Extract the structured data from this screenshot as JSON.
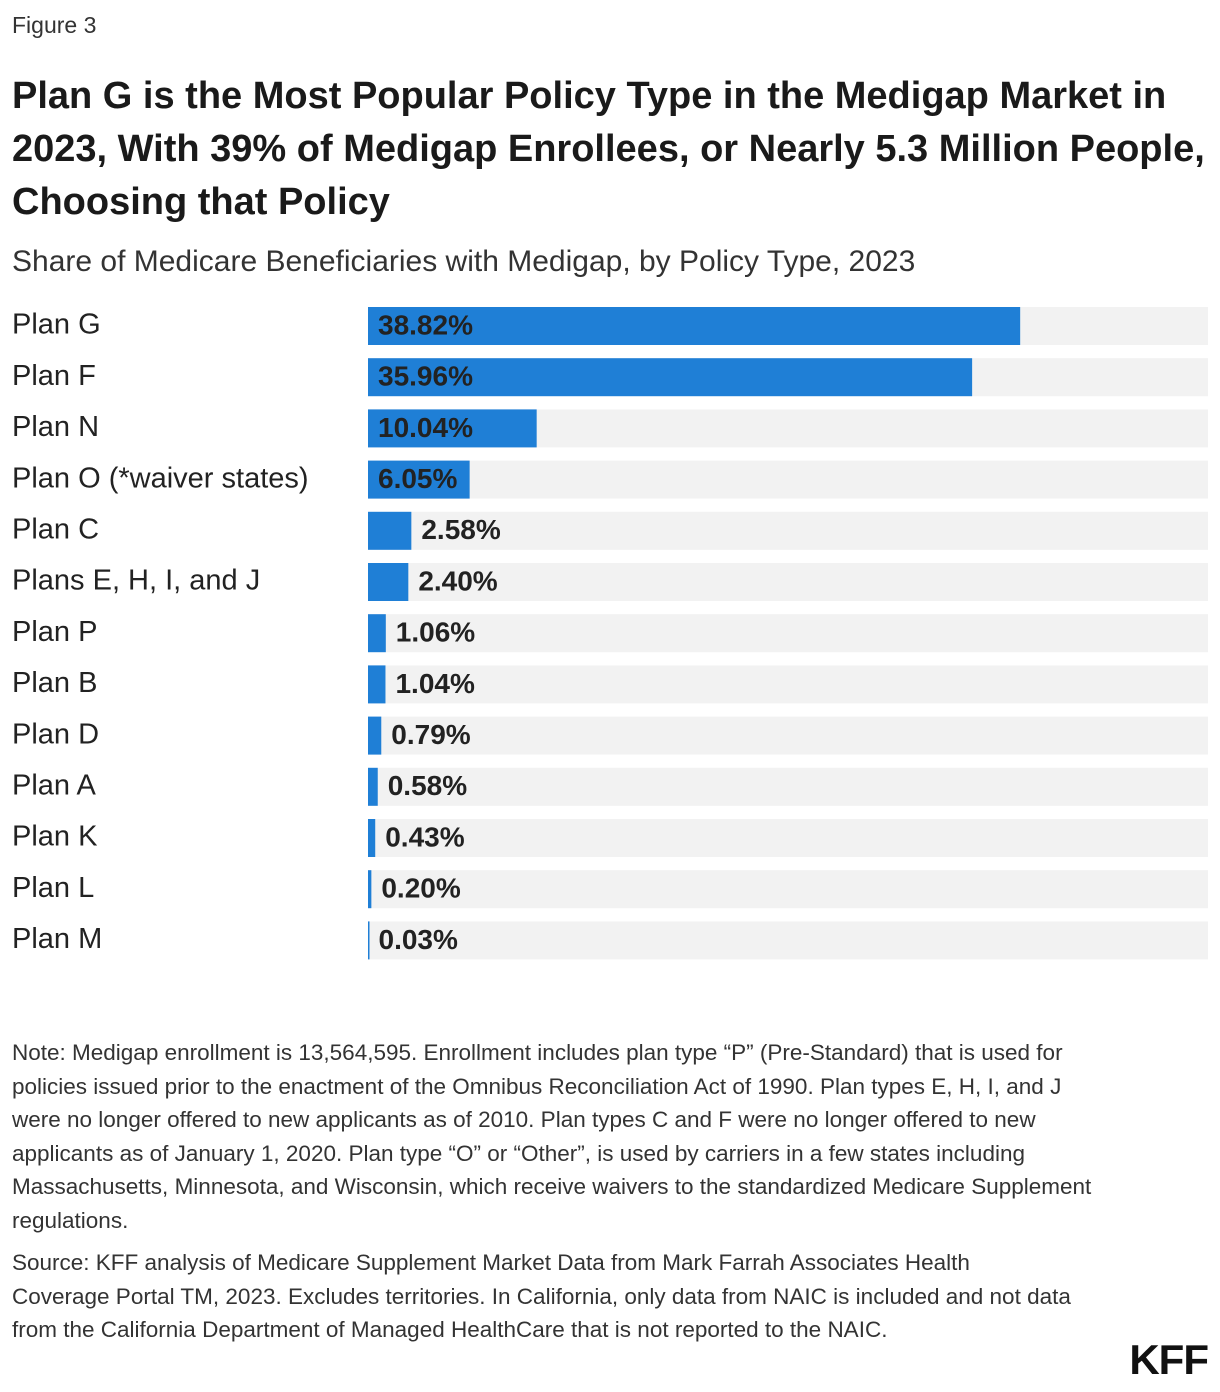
{
  "figure_label": "Figure 3",
  "chart_data": {
    "type": "bar",
    "title": "Plan G is the Most Popular Policy Type in the Medigap Market in 2023, With 39% of Medigap Enrollees, or Nearly 5.3 Million People, Choosing that Policy",
    "subtitle": "Share of Medicare Beneficiaries with Medigap, by Policy Type, 2023",
    "categories": [
      "Plan G",
      "Plan F",
      "Plan N",
      "Plan O (*waiver states)",
      "Plan C",
      "Plans E, H, I, and J",
      "Plan P",
      "Plan B",
      "Plan D",
      "Plan A",
      "Plan K",
      "Plan L",
      "Plan M"
    ],
    "values": [
      38.82,
      35.96,
      10.04,
      6.05,
      2.58,
      2.4,
      1.06,
      1.04,
      0.79,
      0.58,
      0.43,
      0.2,
      0.03
    ],
    "value_labels": [
      "38.82%",
      "35.96%",
      "10.04%",
      "6.05%",
      "2.58%",
      "2.40%",
      "1.06%",
      "1.04%",
      "0.79%",
      "0.58%",
      "0.43%",
      "0.20%",
      "0.03%"
    ],
    "color": "#1f7fd6",
    "track_color": "#f2f2f2",
    "xlim": [
      0,
      50
    ]
  },
  "note": "Note: Medigap enrollment is 13,564,595. Enrollment includes plan type “P” (Pre-Standard) that is used for policies issued prior to the enactment of the Omnibus Reconciliation Act of 1990. Plan types E, H, I, and J were no longer offered to new applicants as of 2010. Plan types C and F were no longer offered to new applicants as of January 1, 2020. Plan type “O” or “Other”, is used by carriers in a few states including Massachusetts, Minnesota, and Wisconsin, which receive waivers to the standardized Medicare Supplement regulations.",
  "source": "Source: KFF analysis of Medicare Supplement Market Data from Mark Farrah Associates Health Coverage Portal TM, 2023. Excludes territories. In California, only data from NAIC is included and not data from the California Department of Managed HealthCare that is not reported to the NAIC.",
  "logo": "KFF"
}
